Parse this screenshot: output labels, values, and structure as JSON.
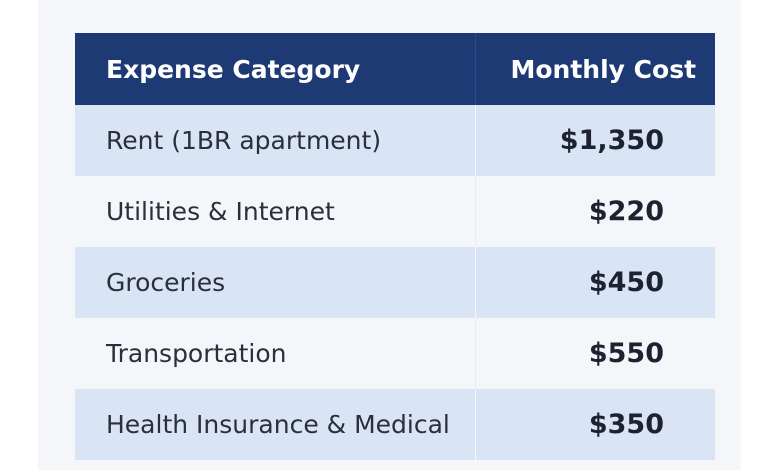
{
  "table": {
    "headers": {
      "category": "Expense Category",
      "cost": "Monthly Cost"
    },
    "rows": [
      {
        "category": "Rent (1BR apartment)",
        "cost": "$1,350"
      },
      {
        "category": "Utilities & Internet",
        "cost": "$220"
      },
      {
        "category": "Groceries",
        "cost": "$450"
      },
      {
        "category": "Transportation",
        "cost": "$550"
      },
      {
        "category": "Health Insurance & Medical",
        "cost": "$350"
      }
    ]
  },
  "colors": {
    "header_bg": "#1e3a74",
    "row_alt_bg": "#d9e4f4",
    "row_plain_bg": "#f4f6fa"
  }
}
